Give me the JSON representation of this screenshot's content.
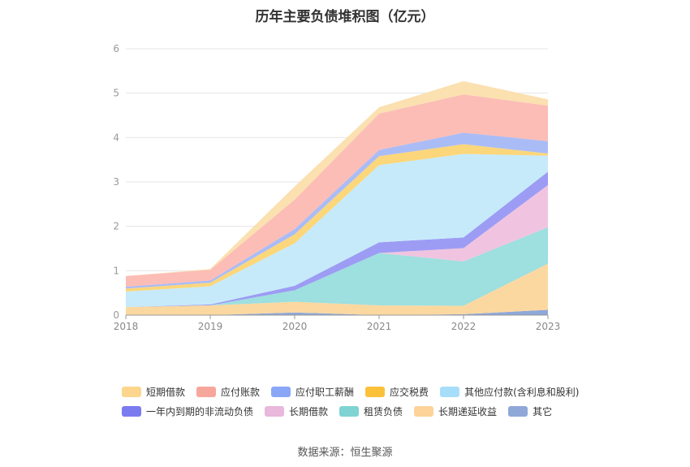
{
  "title": "历年主要负债堆积图（亿元）",
  "source": "数据来源：恒生聚源",
  "chart_data": {
    "type": "area",
    "stacked": true,
    "categories": [
      "2018",
      "2019",
      "2020",
      "2021",
      "2022",
      "2023"
    ],
    "ylim": [
      0,
      6
    ],
    "yticks": [
      "0",
      "1",
      "2",
      "3",
      "4",
      "5",
      "6"
    ],
    "grid": true,
    "series": [
      {
        "name": "其它",
        "color": "#8fa8d8",
        "values": [
          0.0,
          0.0,
          0.06,
          0.0,
          0.02,
          0.12
        ]
      },
      {
        "name": "长期递延收益",
        "color": "#fbd8a0",
        "values": [
          0.18,
          0.22,
          0.24,
          0.22,
          0.19,
          1.04
        ]
      },
      {
        "name": "租赁负债",
        "color": "#9edfdf",
        "values": [
          0.0,
          0.0,
          0.26,
          1.18,
          1.0,
          0.82
        ]
      },
      {
        "name": "长期借款",
        "color": "#f0c4e0",
        "values": [
          0.0,
          0.0,
          0.0,
          0.0,
          0.3,
          0.95
        ]
      },
      {
        "name": "一年内到期的非流动负债",
        "color": "#9c9cf4",
        "values": [
          0.0,
          0.02,
          0.1,
          0.24,
          0.24,
          0.3
        ]
      },
      {
        "name": "其他应付款(含利息和股利)",
        "color": "#c6eafa",
        "values": [
          0.35,
          0.41,
          0.96,
          1.74,
          1.88,
          0.36
        ]
      },
      {
        "name": "应交税费",
        "color": "#fcd67a",
        "values": [
          0.07,
          0.08,
          0.2,
          0.2,
          0.22,
          0.05
        ]
      },
      {
        "name": "应付职工薪酬",
        "color": "#aabcf6",
        "values": [
          0.04,
          0.05,
          0.12,
          0.14,
          0.26,
          0.28
        ]
      },
      {
        "name": "应付账款",
        "color": "#fcbdb6",
        "values": [
          0.24,
          0.24,
          0.66,
          0.82,
          0.86,
          0.8
        ]
      },
      {
        "name": "短期借款",
        "color": "#fbe0b0",
        "values": [
          0.0,
          0.02,
          0.3,
          0.14,
          0.3,
          0.14
        ]
      }
    ]
  },
  "legend": {
    "row1": [
      {
        "label": "短期借款",
        "color": "#fdd68e"
      },
      {
        "label": "应付账款",
        "color": "#f7a69c"
      },
      {
        "label": "应付职工薪酬",
        "color": "#8aa6f6"
      },
      {
        "label": "应交税费",
        "color": "#fbc13a"
      },
      {
        "label": "其他应付款(含利息和股利)",
        "color": "#a6defa"
      }
    ],
    "row2": [
      {
        "label": "一年内到期的非流动负债",
        "color": "#7b7bf0"
      },
      {
        "label": "长期借款",
        "color": "#e9b8dc"
      },
      {
        "label": "租赁负债",
        "color": "#7fd3d3"
      },
      {
        "label": "长期递延收益",
        "color": "#fdd39a"
      },
      {
        "label": "其它",
        "color": "#8fa8d8"
      }
    ]
  }
}
